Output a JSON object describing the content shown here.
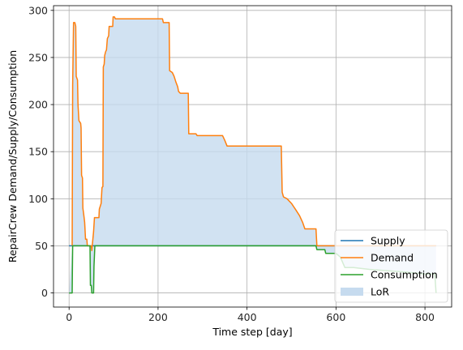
{
  "chart_data": {
    "type": "line",
    "xlabel": "Time step [day]",
    "ylabel": "RepairCrew Demand/Supply/Consumption",
    "xlim": [
      -35,
      860
    ],
    "ylim": [
      -15,
      305
    ],
    "xticks": [
      0,
      200,
      400,
      600,
      800
    ],
    "yticks": [
      0,
      50,
      100,
      150,
      200,
      250,
      300
    ],
    "grid": true,
    "legend_position": "lower right",
    "series": [
      {
        "name": "Supply",
        "color": "#1f77b4",
        "points": [
          [
            0,
            50
          ],
          [
            825,
            50
          ]
        ]
      },
      {
        "name": "Demand",
        "color": "#ff7f0e",
        "points": [
          [
            7,
            50
          ],
          [
            8,
            220
          ],
          [
            10,
            287
          ],
          [
            13,
            287
          ],
          [
            15,
            283
          ],
          [
            16,
            230
          ],
          [
            19,
            226
          ],
          [
            20,
            200
          ],
          [
            22,
            183
          ],
          [
            26,
            180
          ],
          [
            27,
            175
          ],
          [
            28,
            125
          ],
          [
            30,
            122
          ],
          [
            31,
            90
          ],
          [
            33,
            83
          ],
          [
            35,
            75
          ],
          [
            37,
            57
          ],
          [
            40,
            57
          ],
          [
            41,
            50
          ],
          [
            47,
            50
          ],
          [
            50,
            50
          ],
          [
            51,
            45
          ],
          [
            55,
            65
          ],
          [
            57,
            80
          ],
          [
            67,
            80
          ],
          [
            68,
            89
          ],
          [
            72,
            95
          ],
          [
            74,
            112
          ],
          [
            76,
            113
          ],
          [
            77,
            240
          ],
          [
            79,
            243
          ],
          [
            80,
            252
          ],
          [
            82,
            256
          ],
          [
            84,
            258
          ],
          [
            86,
            270
          ],
          [
            89,
            273
          ],
          [
            90,
            283
          ],
          [
            98,
            283
          ],
          [
            99,
            293
          ],
          [
            102,
            293
          ],
          [
            104,
            291
          ],
          [
            200,
            291
          ],
          [
            210,
            291
          ],
          [
            212,
            287
          ],
          [
            225,
            287
          ],
          [
            226,
            236
          ],
          [
            232,
            234
          ],
          [
            236,
            230
          ],
          [
            240,
            224
          ],
          [
            244,
            219
          ],
          [
            246,
            214
          ],
          [
            250,
            212
          ],
          [
            268,
            212
          ],
          [
            269,
            169
          ],
          [
            285,
            169
          ],
          [
            288,
            167
          ],
          [
            345,
            167
          ],
          [
            350,
            162
          ],
          [
            355,
            156
          ],
          [
            400,
            156
          ],
          [
            477,
            156
          ],
          [
            479,
            107
          ],
          [
            482,
            102
          ],
          [
            490,
            100
          ],
          [
            500,
            95
          ],
          [
            510,
            88
          ],
          [
            518,
            82
          ],
          [
            525,
            75
          ],
          [
            530,
            68
          ],
          [
            555,
            68
          ],
          [
            557,
            50
          ],
          [
            825,
            50
          ]
        ]
      },
      {
        "name": "Consumption",
        "color": "#2ca02c",
        "points": [
          [
            0,
            0
          ],
          [
            7,
            0
          ],
          [
            8,
            50
          ],
          [
            47,
            50
          ],
          [
            48,
            8
          ],
          [
            50,
            8
          ],
          [
            51,
            0
          ],
          [
            55,
            0
          ],
          [
            56,
            28
          ],
          [
            58,
            50
          ],
          [
            555,
            50
          ],
          [
            557,
            46
          ],
          [
            575,
            46
          ],
          [
            577,
            42
          ],
          [
            600,
            42
          ],
          [
            610,
            38
          ],
          [
            620,
            27
          ],
          [
            640,
            27
          ],
          [
            675,
            25
          ],
          [
            760,
            22
          ],
          [
            800,
            20
          ],
          [
            822,
            20
          ],
          [
            825,
            0
          ]
        ]
      }
    ],
    "fill": {
      "name": "LoR",
      "color": "#c6dbef",
      "alpha": 0.8
    }
  },
  "legend": {
    "items": [
      {
        "label": "Supply",
        "kind": "line",
        "color": "#1f77b4"
      },
      {
        "label": "Demand",
        "kind": "line",
        "color": "#ff7f0e"
      },
      {
        "label": "Consumption",
        "kind": "line",
        "color": "#2ca02c"
      },
      {
        "label": "LoR",
        "kind": "patch",
        "color": "#c6dbef"
      }
    ]
  }
}
